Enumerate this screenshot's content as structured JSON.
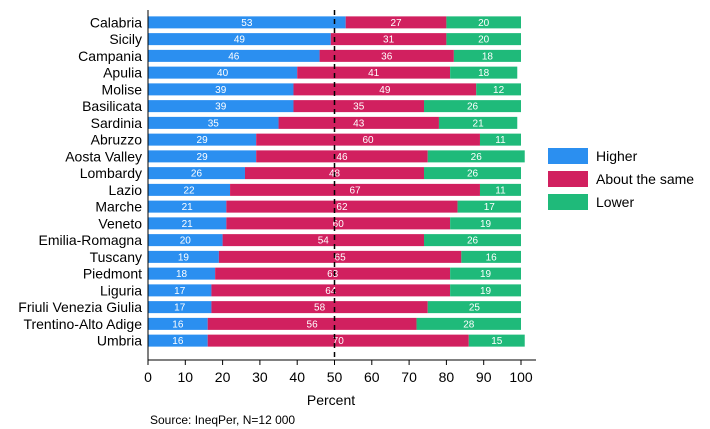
{
  "chart_data": {
    "type": "bar",
    "orientation": "horizontal",
    "stacked": true,
    "title": "",
    "xlabel": "Percent",
    "ylabel": "",
    "xlim": [
      0,
      100
    ],
    "xticks": [
      0,
      10,
      20,
      30,
      40,
      50,
      60,
      70,
      80,
      90,
      100
    ],
    "reference_line": 50,
    "categories": [
      "Calabria",
      "Sicily",
      "Campania",
      "Apulia",
      "Molise",
      "Basilicata",
      "Sardinia",
      "Abruzzo",
      "Aosta Valley",
      "Lombardy",
      "Lazio",
      "Marche",
      "Veneto",
      "Emilia-Romagna",
      "Tuscany",
      "Piedmont",
      "Liguria",
      "Friuli Venezia Giulia",
      "Trentino-Alto Adige",
      "Umbria"
    ],
    "series": [
      {
        "name": "Higher",
        "color": "#2b8ff0",
        "values": [
          53,
          49,
          46,
          40,
          39,
          39,
          35,
          29,
          29,
          26,
          22,
          21,
          21,
          20,
          19,
          18,
          17,
          17,
          16,
          16
        ]
      },
      {
        "name": "About the same",
        "color": "#d1205f",
        "values": [
          27,
          31,
          36,
          41,
          49,
          35,
          43,
          60,
          46,
          48,
          67,
          62,
          60,
          54,
          65,
          63,
          64,
          58,
          56,
          70
        ]
      },
      {
        "name": "Lower",
        "color": "#1fba7a",
        "values": [
          20,
          20,
          18,
          18,
          12,
          26,
          21,
          11,
          26,
          26,
          11,
          17,
          19,
          26,
          16,
          19,
          19,
          25,
          28,
          15
        ]
      }
    ],
    "legend_position": "right",
    "source_note": "Source: IneqPer, N=12 000"
  }
}
